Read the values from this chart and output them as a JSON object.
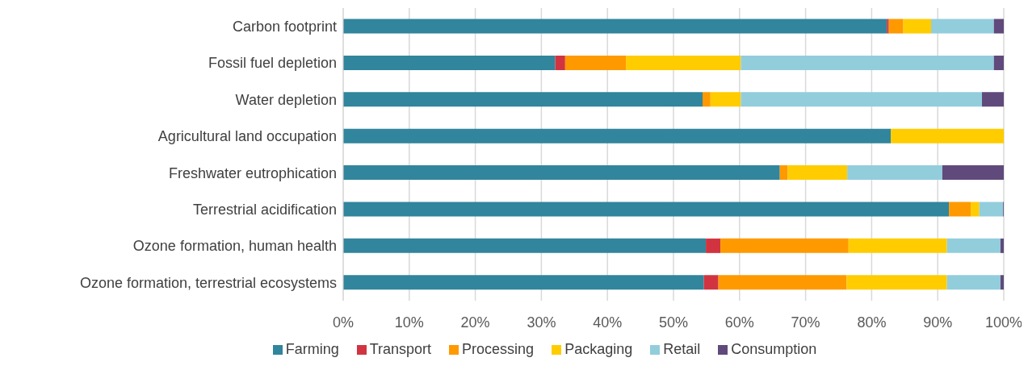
{
  "chart_data": {
    "type": "bar",
    "orientation": "horizontal",
    "stacked": true,
    "categories": [
      "Carbon footprint",
      "Fossil fuel depletion",
      "Water depletion",
      "Agricultural land occupation",
      "Freshwater eutrophication",
      "Terrestrial acidification",
      "Ozone formation, human health",
      "Ozone formation, terrestrial ecosystems"
    ],
    "series": [
      {
        "name": "Farming",
        "color": "#31859c",
        "values": [
          82.3,
          32.1,
          54.4,
          82.9,
          66.1,
          91.7,
          54.9,
          54.6
        ]
      },
      {
        "name": "Transport",
        "color": "#d13440",
        "values": [
          0.3,
          1.5,
          0,
          0,
          0,
          0,
          2.2,
          2.2
        ]
      },
      {
        "name": "Processing",
        "color": "#ff9900",
        "values": [
          2.2,
          9.2,
          1.2,
          0,
          1.2,
          3.3,
          19.4,
          19.4
        ]
      },
      {
        "name": "Packaging",
        "color": "#ffcc00",
        "values": [
          4.2,
          17.4,
          4.6,
          17.1,
          9.0,
          1.3,
          14.9,
          15.2
        ]
      },
      {
        "name": "Retail",
        "color": "#92cddc",
        "values": [
          9.5,
          38.3,
          36.5,
          0,
          14.4,
          3.6,
          8.1,
          8.1
        ]
      },
      {
        "name": "Consumption",
        "color": "#604a7b",
        "values": [
          1.5,
          1.5,
          3.3,
          0,
          9.3,
          0.1,
          0.5,
          0.5
        ]
      }
    ],
    "xlim": [
      0,
      100
    ],
    "xticks": [
      {
        "value": 0,
        "label": "0%"
      },
      {
        "value": 10,
        "label": "10%"
      },
      {
        "value": 20,
        "label": "20%"
      },
      {
        "value": 30,
        "label": "30%"
      },
      {
        "value": 40,
        "label": "40%"
      },
      {
        "value": 50,
        "label": "50%"
      },
      {
        "value": 60,
        "label": "60%"
      },
      {
        "value": 70,
        "label": "70%"
      },
      {
        "value": 80,
        "label": "80%"
      },
      {
        "value": 90,
        "label": "90%"
      },
      {
        "value": 100,
        "label": "100%"
      }
    ],
    "grid": "x",
    "legend": "bottom"
  }
}
